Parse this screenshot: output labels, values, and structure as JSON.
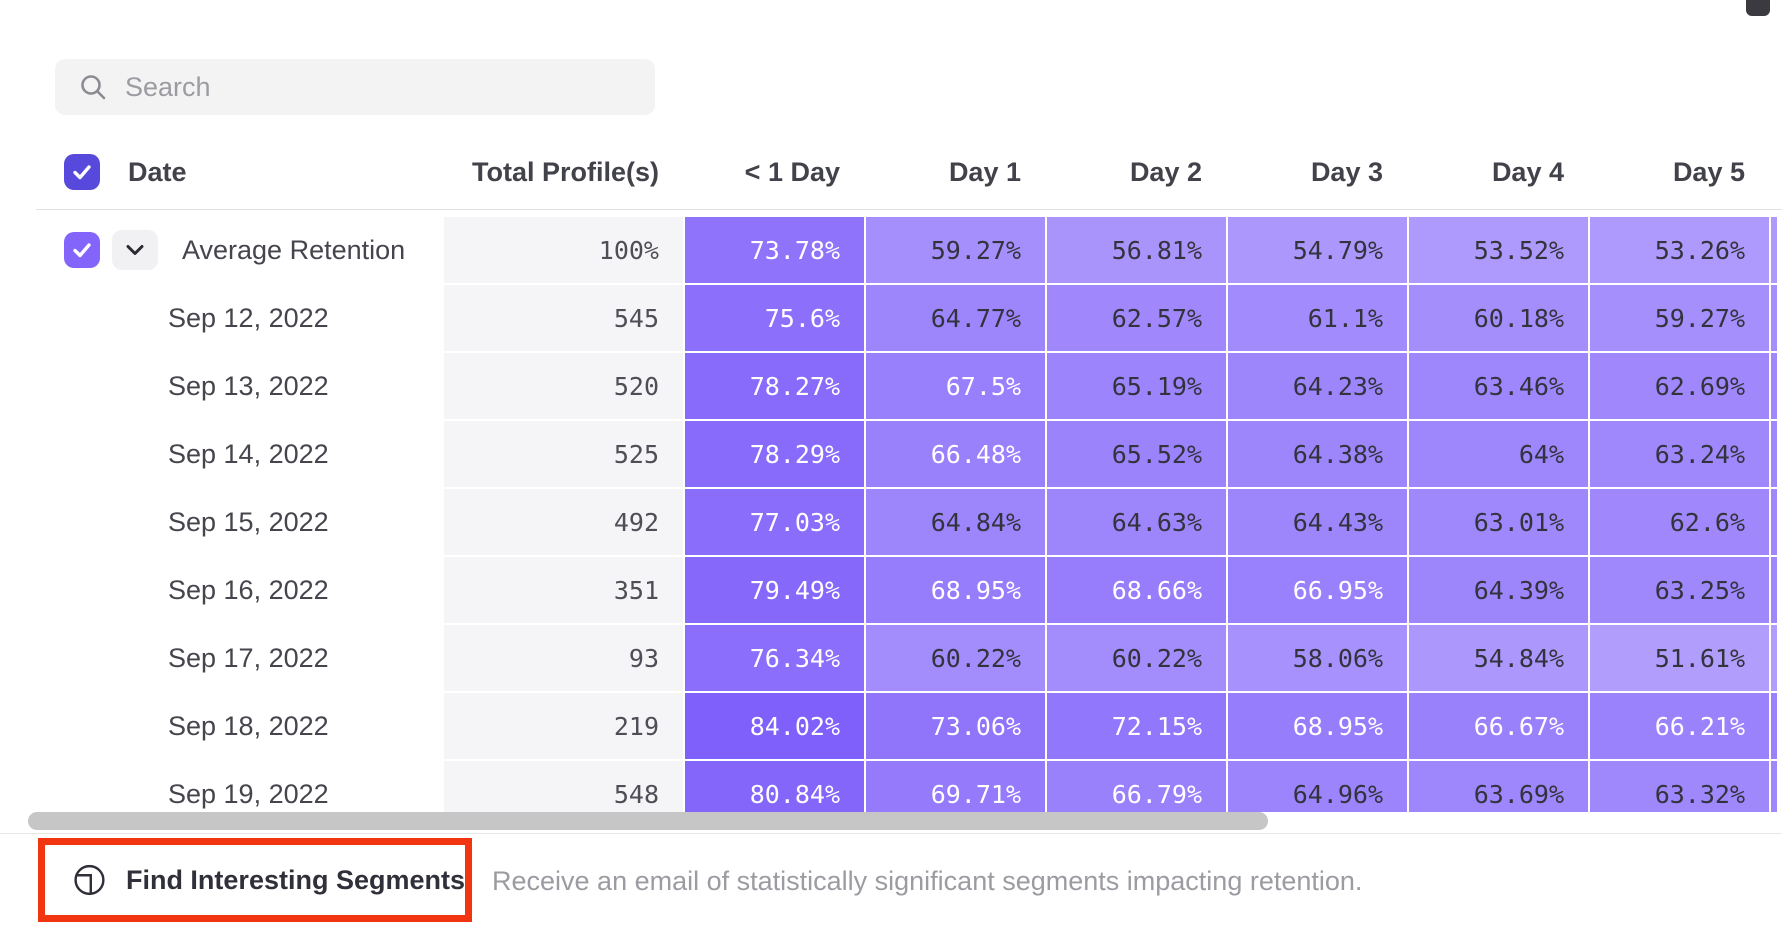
{
  "search": {
    "placeholder": "Search"
  },
  "table": {
    "date_header": "Date",
    "columns": [
      "Total Profile(s)",
      "< 1 Day",
      "Day 1",
      "Day 2",
      "Day 3",
      "Day 4",
      "Day 5"
    ],
    "rows": [
      {
        "label": "Average Retention",
        "checked": true,
        "expandable": true,
        "total": "100%",
        "cells": [
          "73.78%",
          "59.27%",
          "56.81%",
          "54.79%",
          "53.52%",
          "53.26%"
        ]
      },
      {
        "label": "Sep 12, 2022",
        "total": "545",
        "cells": [
          "75.6%",
          "64.77%",
          "62.57%",
          "61.1%",
          "60.18%",
          "59.27%"
        ]
      },
      {
        "label": "Sep 13, 2022",
        "total": "520",
        "cells": [
          "78.27%",
          "67.5%",
          "65.19%",
          "64.23%",
          "63.46%",
          "62.69%"
        ]
      },
      {
        "label": "Sep 14, 2022",
        "total": "525",
        "cells": [
          "78.29%",
          "66.48%",
          "65.52%",
          "64.38%",
          "64%",
          "63.24%"
        ]
      },
      {
        "label": "Sep 15, 2022",
        "total": "492",
        "cells": [
          "77.03%",
          "64.84%",
          "64.63%",
          "64.43%",
          "63.01%",
          "62.6%"
        ]
      },
      {
        "label": "Sep 16, 2022",
        "total": "351",
        "cells": [
          "79.49%",
          "68.95%",
          "68.66%",
          "66.95%",
          "64.39%",
          "63.25%"
        ]
      },
      {
        "label": "Sep 17, 2022",
        "total": "93",
        "cells": [
          "76.34%",
          "60.22%",
          "60.22%",
          "58.06%",
          "54.84%",
          "51.61%"
        ]
      },
      {
        "label": "Sep 18, 2022",
        "total": "219",
        "cells": [
          "84.02%",
          "73.06%",
          "72.15%",
          "68.95%",
          "66.67%",
          "66.21%"
        ]
      },
      {
        "label": "Sep 19, 2022",
        "total": "548",
        "cells": [
          "80.84%",
          "69.71%",
          "66.79%",
          "64.96%",
          "63.69%",
          "63.32%"
        ]
      }
    ]
  },
  "colors": {
    "header_checkbox": "#5649dc",
    "row_checkbox": "#8365fb",
    "cell_base_rgb": "103,66,250",
    "white_text_threshold": 66,
    "highlight_border": "#f23511",
    "scrollbar_thumb": "#c6c6c6"
  },
  "footer": {
    "button_label": "Find Interesting Segments",
    "description": "Receive an email of statistically significant segments impacting retention."
  }
}
